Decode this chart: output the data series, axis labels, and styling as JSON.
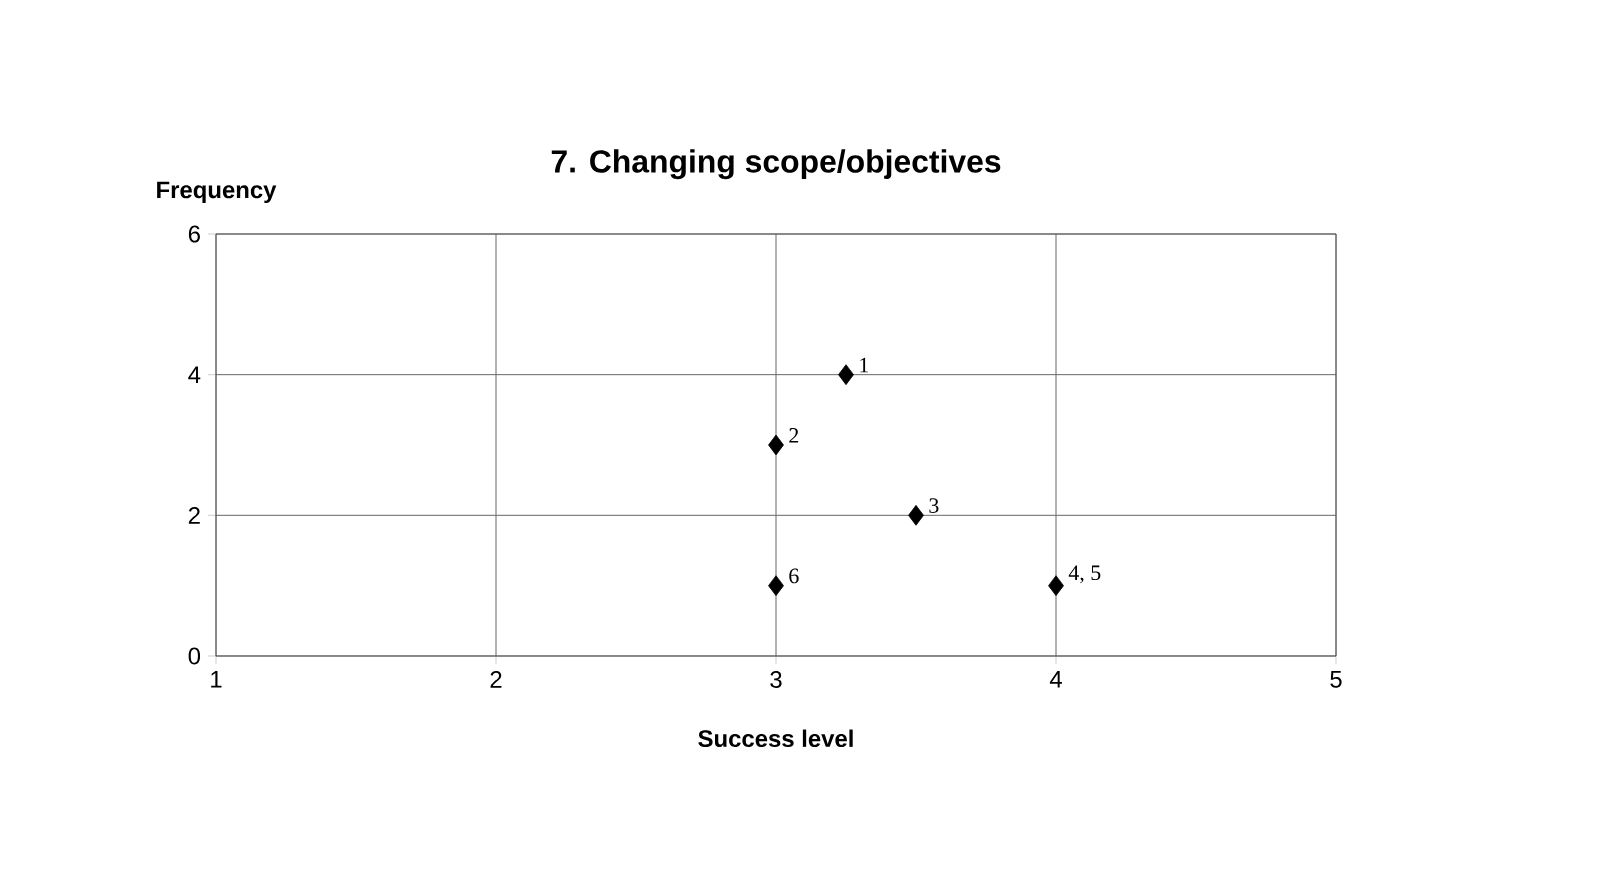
{
  "chart_data": {
    "type": "scatter",
    "title": "7. Changing scope/objectives",
    "xlabel": "Success level",
    "ylabel": "Frequency",
    "x": [
      3.25,
      3,
      3.5,
      4,
      3
    ],
    "series": [
      {
        "color": "#000000",
        "values": [
          4,
          3,
          2,
          1,
          1
        ]
      }
    ],
    "xlim": [
      1,
      5
    ],
    "ylim": [
      0,
      6
    ],
    "xticks": [
      1,
      2,
      3,
      4,
      5
    ],
    "yticks": [
      0,
      2,
      4,
      6
    ],
    "grid": true,
    "marker": "diamond",
    "annotations": [
      {
        "text": "1",
        "x": 3.25,
        "y": 4
      },
      {
        "text": "2",
        "x": 3,
        "y": 3
      },
      {
        "text": "3",
        "x": 3.5,
        "y": 2
      },
      {
        "text": "4, 5",
        "x": 4,
        "y": 1
      },
      {
        "text": "6",
        "x": 3,
        "y": 1
      }
    ]
  }
}
